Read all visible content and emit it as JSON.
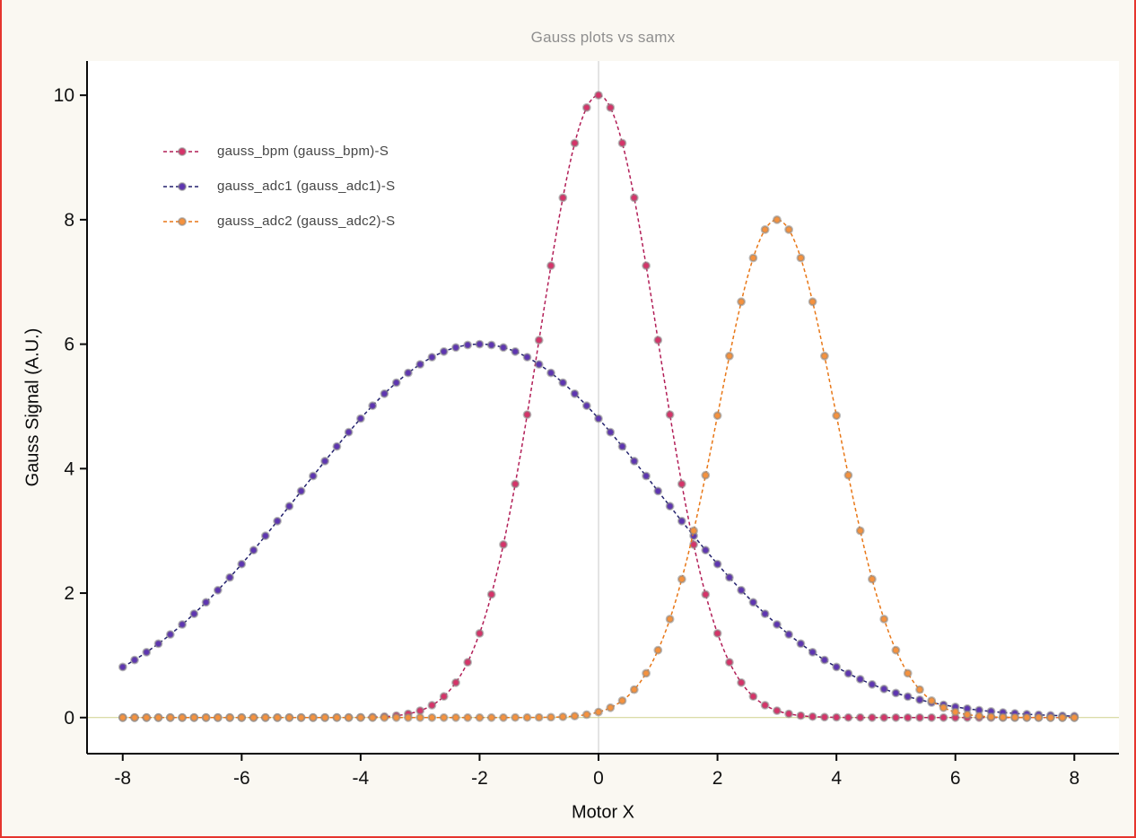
{
  "window": {
    "background": "#faf8f2",
    "border_color": "#e5352e"
  },
  "colors": {
    "axis": "#0a0a0a",
    "tick_label": "#111111",
    "title": "#8f8f8f",
    "axis_label": "#0a0a0a",
    "plot_background": "#ffffff",
    "zero_vertical_line": "#c9c9c9",
    "zero_horizontal_line": "#cfd18c",
    "marker_ring": "rgba(135,135,135,0.55)",
    "legend_text": "#454545"
  },
  "chart_data": {
    "type": "line",
    "title": "Gauss plots vs samx",
    "xlabel": "Motor X",
    "ylabel": "Gauss Signal (A.U.)",
    "x_ticks": [
      -8,
      -6,
      -4,
      -2,
      0,
      2,
      4,
      6,
      8
    ],
    "y_ticks": [
      0,
      2,
      4,
      6,
      8,
      10
    ],
    "x_domain": [
      -8.6,
      8.75
    ],
    "y_domain": [
      -0.58,
      10.55
    ],
    "grid": {
      "vertical_line_at_x": 0,
      "horizontal_line_at_y": 0
    },
    "legend_position": "upper-left",
    "sampling": {
      "x_start": -8,
      "x_stop": 8,
      "marker_step": 0.2,
      "curve_step": 0.05
    },
    "series": [
      {
        "name": "gauss_bpm (gauss_bpm)-S",
        "shape": "gaussian",
        "amplitude": 10,
        "center": 0,
        "sigma": 1,
        "marker_color": "#d63369",
        "line_color": "#b21e57"
      },
      {
        "name": "gauss_adc1 (gauss_adc1)-S",
        "shape": "gaussian",
        "amplitude": 6,
        "center": -2,
        "sigma": 3,
        "marker_color": "#5e35b1",
        "line_color": "#23216e"
      },
      {
        "name": "gauss_adc2 (gauss_adc2)-S",
        "shape": "gaussian",
        "amplitude": 8,
        "center": 3,
        "sigma": 1,
        "marker_color": "#f5923e",
        "line_color": "#e87717"
      }
    ]
  }
}
